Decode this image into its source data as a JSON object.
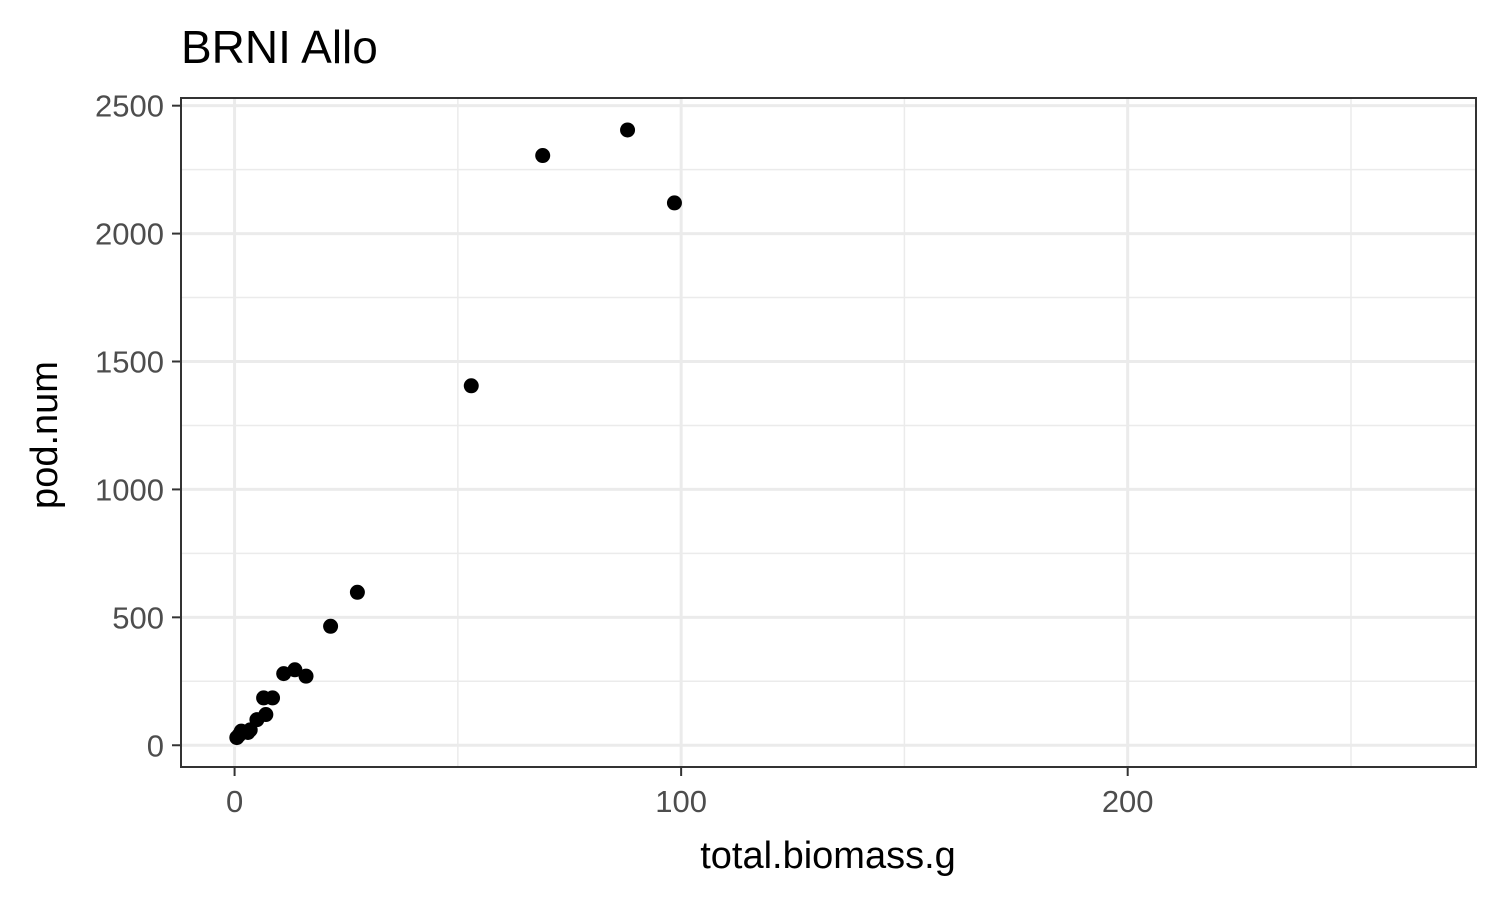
{
  "chart_data": {
    "type": "scatter",
    "title": "BRNI Allo",
    "xlabel": "total.biomass.g",
    "ylabel": "pod.num",
    "xlim": [
      -12,
      278
    ],
    "ylim": [
      -85,
      2530
    ],
    "x_ticks": [
      0,
      100,
      200
    ],
    "y_ticks": [
      0,
      500,
      1000,
      1500,
      2000,
      2500
    ],
    "x_tick_labels": [
      "0",
      "100",
      "200"
    ],
    "y_tick_labels": [
      "0",
      "500",
      "1000",
      "1500",
      "2000",
      "2500"
    ],
    "grid": true,
    "legend": "none",
    "point_color": "#000000",
    "points": [
      {
        "x": 0.5,
        "y": 30
      },
      {
        "x": 1.0,
        "y": 40
      },
      {
        "x": 1.5,
        "y": 55
      },
      {
        "x": 3.0,
        "y": 50
      },
      {
        "x": 3.5,
        "y": 60
      },
      {
        "x": 5.0,
        "y": 100
      },
      {
        "x": 7.0,
        "y": 120
      },
      {
        "x": 6.5,
        "y": 185
      },
      {
        "x": 8.5,
        "y": 185
      },
      {
        "x": 11.0,
        "y": 280
      },
      {
        "x": 13.5,
        "y": 295
      },
      {
        "x": 16.0,
        "y": 270
      },
      {
        "x": 21.5,
        "y": 465
      },
      {
        "x": 27.5,
        "y": 598
      },
      {
        "x": 53.0,
        "y": 1405
      },
      {
        "x": 69.0,
        "y": 2305
      },
      {
        "x": 88.0,
        "y": 2405
      },
      {
        "x": 98.5,
        "y": 2120
      }
    ]
  }
}
